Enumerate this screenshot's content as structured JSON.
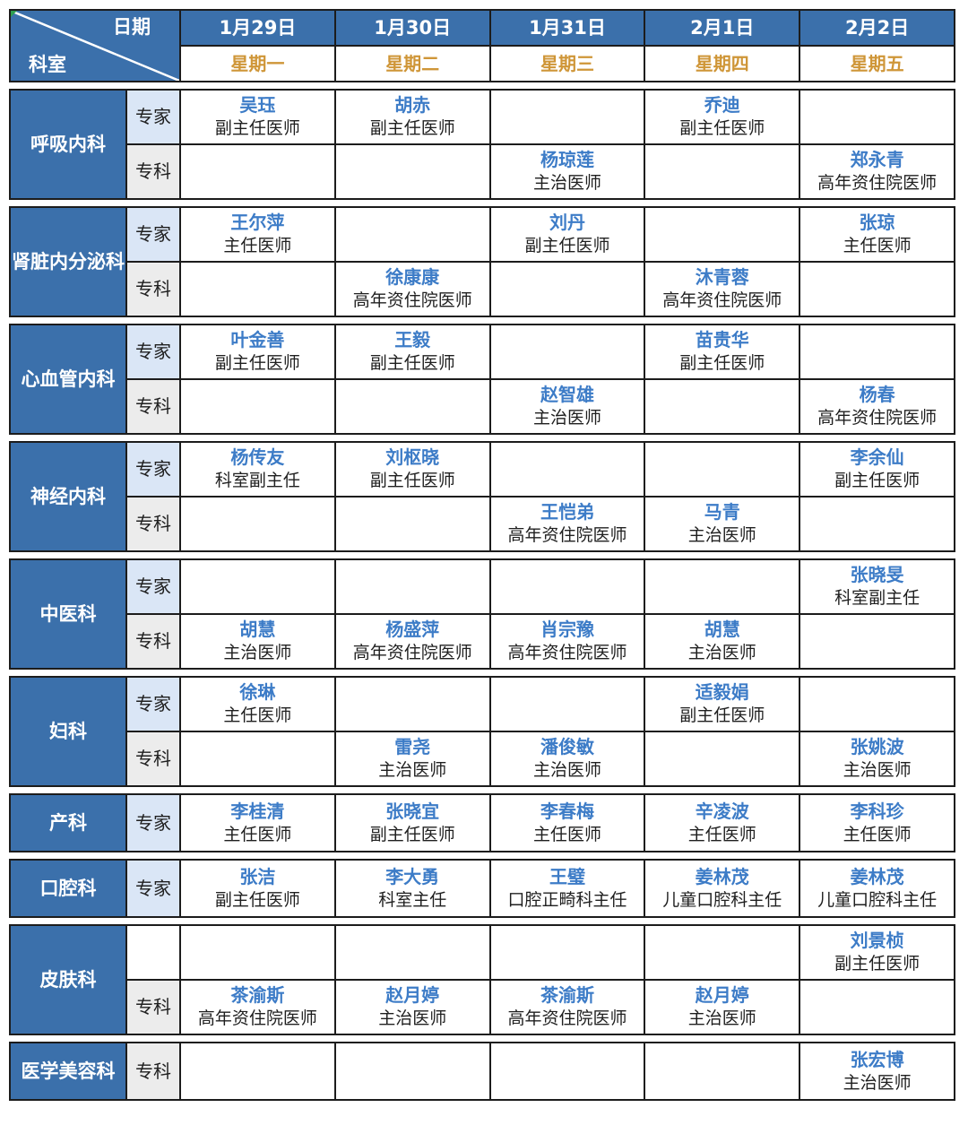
{
  "colors": {
    "header_blue": "#3b70ab",
    "name_blue": "#3d7cc7",
    "weekday_orange": "#cf9638",
    "expert_bg": "#dae6f6",
    "specialist_bg": "#ececec",
    "grid_line": "#1c1c1c",
    "title_dark": "#1f1f1f"
  },
  "header": {
    "corner_top": "日期",
    "corner_bottom": "科室",
    "days": [
      {
        "date": "1月29日",
        "weekday": "星期一"
      },
      {
        "date": "1月30日",
        "weekday": "星期二"
      },
      {
        "date": "1月31日",
        "weekday": "星期三"
      },
      {
        "date": "2月1日",
        "weekday": "星期四"
      },
      {
        "date": "2月2日",
        "weekday": "星期五"
      }
    ]
  },
  "departments": [
    {
      "name": "呼吸内科",
      "rows": [
        {
          "label": "专家",
          "style": "expert",
          "cells": [
            {
              "doctor": "吴珏",
              "title": "副主任医师"
            },
            {
              "doctor": "胡赤",
              "title": "副主任医师"
            },
            null,
            {
              "doctor": "乔迪",
              "title": "副主任医师"
            },
            null
          ]
        },
        {
          "label": "专科",
          "style": "specialist",
          "cells": [
            null,
            null,
            {
              "doctor": "杨琼莲",
              "title": "主治医师"
            },
            null,
            {
              "doctor": "郑永青",
              "title": "高年资住院医师"
            }
          ]
        }
      ]
    },
    {
      "name": "肾脏内分泌科",
      "rows": [
        {
          "label": "专家",
          "style": "expert",
          "cells": [
            {
              "doctor": "王尔萍",
              "title": "主任医师"
            },
            null,
            {
              "doctor": "刘丹",
              "title": "副主任医师"
            },
            null,
            {
              "doctor": "张琼",
              "title": "主任医师"
            }
          ]
        },
        {
          "label": "专科",
          "style": "specialist",
          "cells": [
            null,
            {
              "doctor": "徐康康",
              "title": "高年资住院医师"
            },
            null,
            {
              "doctor": "沐青蓉",
              "title": "高年资住院医师"
            },
            null
          ]
        }
      ]
    },
    {
      "name": "心血管内科",
      "rows": [
        {
          "label": "专家",
          "style": "expert",
          "cells": [
            {
              "doctor": "叶金善",
              "title": "副主任医师"
            },
            {
              "doctor": "王毅",
              "title": "副主任医师"
            },
            null,
            {
              "doctor": "苗贵华",
              "title": "副主任医师"
            },
            null
          ]
        },
        {
          "label": "专科",
          "style": "specialist",
          "cells": [
            null,
            null,
            {
              "doctor": "赵智雄",
              "title": "主治医师"
            },
            null,
            {
              "doctor": "杨春",
              "title": "高年资住院医师"
            }
          ]
        }
      ]
    },
    {
      "name": "神经内科",
      "rows": [
        {
          "label": "专家",
          "style": "expert",
          "cells": [
            {
              "doctor": "杨传友",
              "title": "科室副主任"
            },
            {
              "doctor": "刘枢晓",
              "title": "副主任医师"
            },
            null,
            null,
            {
              "doctor": "李余仙",
              "title": "副主任医师"
            }
          ]
        },
        {
          "label": "专科",
          "style": "specialist",
          "cells": [
            null,
            null,
            {
              "doctor": "王恺弟",
              "title": "高年资住院医师"
            },
            {
              "doctor": "马青",
              "title": "主治医师"
            },
            null
          ]
        }
      ]
    },
    {
      "name": "中医科",
      "rows": [
        {
          "label": "专家",
          "style": "expert",
          "cells": [
            null,
            null,
            null,
            null,
            {
              "doctor": "张晓旻",
              "title": "科室副主任"
            }
          ]
        },
        {
          "label": "专科",
          "style": "specialist",
          "cells": [
            {
              "doctor": "胡慧",
              "title": "主治医师"
            },
            {
              "doctor": "杨盛萍",
              "title": "高年资住院医师"
            },
            {
              "doctor": "肖宗豫",
              "title": "高年资住院医师"
            },
            {
              "doctor": "胡慧",
              "title": "主治医师"
            },
            null
          ]
        }
      ]
    },
    {
      "name": "妇科",
      "rows": [
        {
          "label": "专家",
          "style": "expert",
          "cells": [
            {
              "doctor": "徐琳",
              "title": "主任医师"
            },
            null,
            null,
            {
              "doctor": "适毅娟",
              "title": "副主任医师"
            },
            null
          ]
        },
        {
          "label": "专科",
          "style": "specialist",
          "cells": [
            null,
            {
              "doctor": "雷尧",
              "title": "主治医师"
            },
            {
              "doctor": "潘俊敏",
              "title": "主治医师"
            },
            null,
            {
              "doctor": "张姚波",
              "title": "主治医师"
            }
          ]
        }
      ]
    },
    {
      "name": "产科",
      "rows": [
        {
          "label": "专家",
          "style": "expert",
          "cells": [
            {
              "doctor": "李桂清",
              "title": "主任医师"
            },
            {
              "doctor": "张晓宜",
              "title": "副主任医师"
            },
            {
              "doctor": "李春梅",
              "title": "主任医师"
            },
            {
              "doctor": "辛凌波",
              "title": "主任医师"
            },
            {
              "doctor": "李科珍",
              "title": "主任医师"
            }
          ]
        }
      ]
    },
    {
      "name": "口腔科",
      "rows": [
        {
          "label": "专家",
          "style": "expert",
          "cells": [
            {
              "doctor": "张洁",
              "title": "副主任医师"
            },
            {
              "doctor": "李大勇",
              "title": "科室主任"
            },
            {
              "doctor": "王璧",
              "title": "口腔正畸科主任"
            },
            {
              "doctor": "姜林茂",
              "title": "儿童口腔科主任"
            },
            {
              "doctor": "姜林茂",
              "title": "儿童口腔科主任"
            }
          ]
        }
      ]
    },
    {
      "name": "皮肤科",
      "rows": [
        {
          "label": "",
          "style": "plain",
          "cells": [
            null,
            null,
            null,
            null,
            {
              "doctor": "刘景桢",
              "title": "副主任医师"
            }
          ]
        },
        {
          "label": "专科",
          "style": "specialist",
          "cells": [
            {
              "doctor": "茶渝斯",
              "title": "高年资住院医师"
            },
            {
              "doctor": "赵月婷",
              "title": "主治医师"
            },
            {
              "doctor": "茶渝斯",
              "title": "高年资住院医师"
            },
            {
              "doctor": "赵月婷",
              "title": "主治医师"
            },
            null
          ]
        }
      ]
    },
    {
      "name": "医学美容科",
      "rows": [
        {
          "label": "专科",
          "style": "specialist",
          "cells": [
            null,
            null,
            null,
            null,
            {
              "doctor": "张宏博",
              "title": "主治医师"
            }
          ]
        }
      ]
    }
  ]
}
